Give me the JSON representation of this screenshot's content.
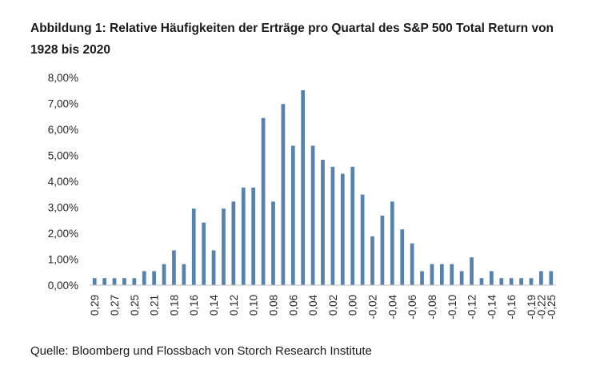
{
  "title": "Abbildung 1: Relative Häufigkeiten der Erträge pro Quartal des S&P 500 Total Return von 1928 bis 2020",
  "source": "Quelle: Bloomberg und Flossbach von Storch Research Institute",
  "colors": {
    "bar": "#5782ae",
    "axis": "#bfbfbf"
  },
  "chart_data": {
    "type": "bar",
    "title": "Abbildung 1: Relative Häufigkeiten der Erträge pro Quartal des S&P 500 Total Return von 1928 bis 2020",
    "xlabel": "",
    "ylabel": "",
    "ylim": [
      0,
      8
    ],
    "yticks": [
      "0,00%",
      "1,00%",
      "2,00%",
      "3,00%",
      "4,00%",
      "5,00%",
      "6,00%",
      "7,00%",
      "8,00%"
    ],
    "grid": false,
    "legend": "none",
    "x_tick_labels": [
      "0,29",
      "0,27",
      "0,25",
      "0,21",
      "0,18",
      "0,16",
      "0,14",
      "0,12",
      "0,10",
      "0,08",
      "0,06",
      "0,04",
      "0,02",
      "0,00",
      "-0,02",
      "-0,04",
      "-0,06",
      "-0,08",
      "-0,10",
      "-0,12",
      "-0,14",
      "-0,16",
      "-0,19",
      "-0,22",
      "-0,25"
    ],
    "values": [
      0.27,
      0.27,
      0.27,
      0.27,
      0.27,
      0.54,
      0.54,
      0.81,
      1.34,
      0.81,
      2.95,
      2.41,
      1.34,
      2.95,
      3.22,
      3.76,
      3.76,
      6.44,
      3.22,
      6.98,
      5.37,
      7.51,
      5.37,
      4.83,
      4.56,
      4.29,
      4.56,
      3.49,
      1.88,
      2.68,
      3.22,
      2.15,
      1.61,
      0.54,
      0.81,
      0.81,
      0.81,
      0.54,
      1.07,
      0.27,
      0.54,
      0.27,
      0.27,
      0.27,
      0.27,
      0.54,
      0.54
    ]
  }
}
